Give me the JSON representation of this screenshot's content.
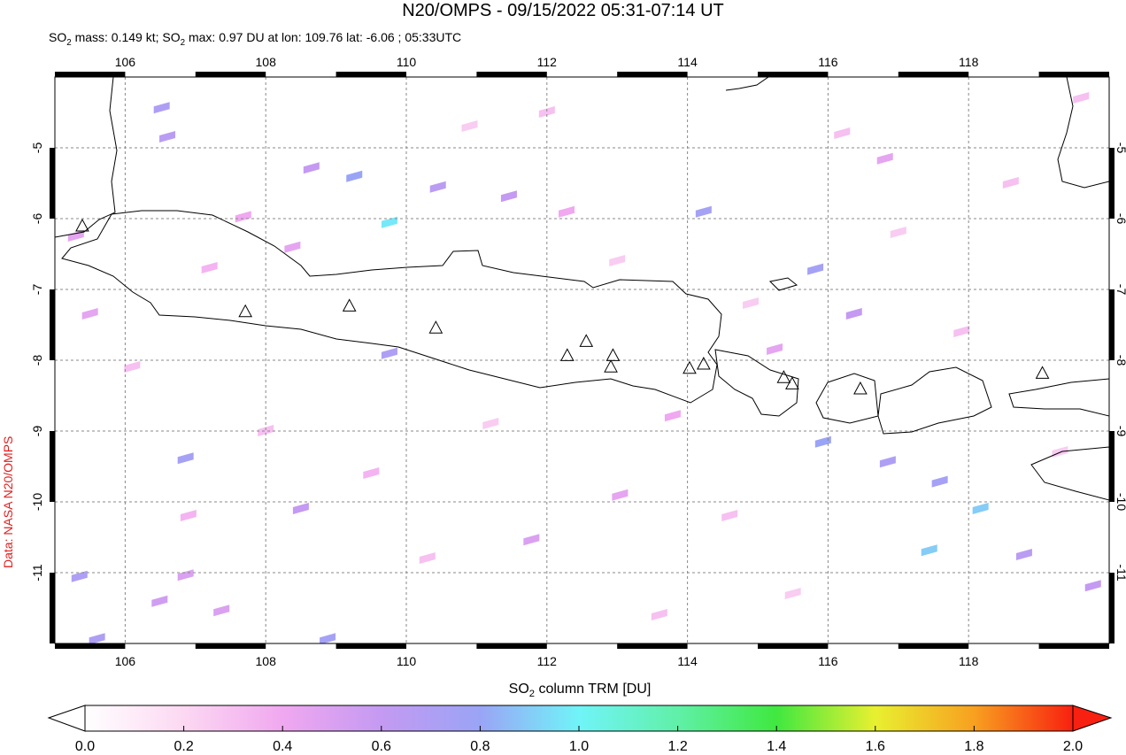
{
  "title": "N20/OMPS - 09/15/2022 05:31-07:14 UT",
  "subtitle": [
    "SO",
    "2",
    " mass: 0.149 kt; SO",
    "2",
    " max: 0.97 DU at lon: 109.76 lat: -6.06 ; 05:33UTC"
  ],
  "credit": "Data: NASA N20/OMPS",
  "map": {
    "xlim": [
      105,
      120
    ],
    "ylim": [
      -12,
      -4
    ],
    "xticks": [
      106,
      108,
      110,
      112,
      114,
      116,
      118
    ],
    "yticks": [
      -5,
      -6,
      -7,
      -8,
      -9,
      -10,
      -11
    ],
    "volcanoes": [
      {
        "lon": 105.39,
        "lat": -6.1
      },
      {
        "lon": 107.71,
        "lat": -7.31
      },
      {
        "lon": 109.19,
        "lat": -7.23
      },
      {
        "lon": 110.42,
        "lat": -7.54
      },
      {
        "lon": 112.29,
        "lat": -7.93
      },
      {
        "lon": 112.56,
        "lat": -7.73
      },
      {
        "lon": 112.94,
        "lat": -7.93
      },
      {
        "lon": 112.91,
        "lat": -8.09
      },
      {
        "lon": 114.03,
        "lat": -8.11
      },
      {
        "lon": 114.23,
        "lat": -8.05
      },
      {
        "lon": 115.37,
        "lat": -8.24
      },
      {
        "lon": 115.49,
        "lat": -8.33
      },
      {
        "lon": 116.46,
        "lat": -8.4
      },
      {
        "lon": 119.05,
        "lat": -8.18
      }
    ],
    "pixels": [
      {
        "lon": 109.76,
        "lat": -6.06,
        "value": 0.97
      },
      {
        "lon": 109.26,
        "lat": -5.41,
        "value": 0.8
      },
      {
        "lon": 106.86,
        "lat": -9.39,
        "value": 0.75
      },
      {
        "lon": 106.52,
        "lat": -4.44,
        "value": 0.7
      },
      {
        "lon": 106.6,
        "lat": -4.85,
        "value": 0.65
      },
      {
        "lon": 108.65,
        "lat": -5.29,
        "value": 0.6
      },
      {
        "lon": 110.45,
        "lat": -5.56,
        "value": 0.65
      },
      {
        "lon": 111.46,
        "lat": -5.69,
        "value": 0.6
      },
      {
        "lon": 114.23,
        "lat": -5.91,
        "value": 0.75
      },
      {
        "lon": 109.76,
        "lat": -7.91,
        "value": 0.7
      },
      {
        "lon": 108.5,
        "lat": -10.1,
        "value": 0.6
      },
      {
        "lon": 106.49,
        "lat": -11.41,
        "value": 0.55
      },
      {
        "lon": 108.88,
        "lat": -11.94,
        "value": 0.75
      },
      {
        "lon": 105.6,
        "lat": -11.94,
        "value": 0.7
      },
      {
        "lon": 105.35,
        "lat": -11.06,
        "value": 0.7
      },
      {
        "lon": 115.93,
        "lat": -9.16,
        "value": 0.8
      },
      {
        "lon": 117.44,
        "lat": -10.69,
        "value": 0.9
      },
      {
        "lon": 118.17,
        "lat": -10.1,
        "value": 0.9
      },
      {
        "lon": 117.59,
        "lat": -9.72,
        "value": 0.75
      },
      {
        "lon": 116.85,
        "lat": -9.44,
        "value": 0.7
      },
      {
        "lon": 115.82,
        "lat": -6.72,
        "value": 0.75
      },
      {
        "lon": 116.37,
        "lat": -7.35,
        "value": 0.6
      },
      {
        "lon": 118.79,
        "lat": -10.75,
        "value": 0.65
      },
      {
        "lon": 119.77,
        "lat": -11.19,
        "value": 0.6
      },
      {
        "lon": 106.86,
        "lat": -11.04,
        "value": 0.5
      },
      {
        "lon": 107.37,
        "lat": -11.54,
        "value": 0.5
      },
      {
        "lon": 111.78,
        "lat": -10.54,
        "value": 0.5
      },
      {
        "lon": 113.04,
        "lat": -9.91,
        "value": 0.45
      },
      {
        "lon": 108.38,
        "lat": -6.41,
        "value": 0.45
      },
      {
        "lon": 107.68,
        "lat": -5.98,
        "value": 0.4
      },
      {
        "lon": 112.28,
        "lat": -5.91,
        "value": 0.4
      },
      {
        "lon": 116.81,
        "lat": -5.16,
        "value": 0.45
      },
      {
        "lon": 115.24,
        "lat": -7.85,
        "value": 0.45
      },
      {
        "lon": 113.79,
        "lat": -8.79,
        "value": 0.4
      },
      {
        "lon": 105.3,
        "lat": -6.25,
        "value": 0.45
      },
      {
        "lon": 105.5,
        "lat": -7.35,
        "value": 0.45
      },
      {
        "lon": 106.1,
        "lat": -8.1,
        "value": 0.3
      },
      {
        "lon": 107.2,
        "lat": -6.7,
        "value": 0.35
      },
      {
        "lon": 108.0,
        "lat": -9.0,
        "value": 0.3
      },
      {
        "lon": 109.5,
        "lat": -9.6,
        "value": 0.35
      },
      {
        "lon": 110.3,
        "lat": -10.8,
        "value": 0.3
      },
      {
        "lon": 111.2,
        "lat": -8.9,
        "value": 0.25
      },
      {
        "lon": 112.0,
        "lat": -4.5,
        "value": 0.3
      },
      {
        "lon": 113.0,
        "lat": -6.6,
        "value": 0.25
      },
      {
        "lon": 114.6,
        "lat": -10.2,
        "value": 0.3
      },
      {
        "lon": 115.5,
        "lat": -11.3,
        "value": 0.25
      },
      {
        "lon": 116.2,
        "lat": -4.8,
        "value": 0.3
      },
      {
        "lon": 117.0,
        "lat": -6.2,
        "value": 0.25
      },
      {
        "lon": 117.9,
        "lat": -7.6,
        "value": 0.3
      },
      {
        "lon": 118.6,
        "lat": -5.5,
        "value": 0.3
      },
      {
        "lon": 119.3,
        "lat": -9.3,
        "value": 0.25
      },
      {
        "lon": 119.6,
        "lat": -4.3,
        "value": 0.3
      },
      {
        "lon": 110.9,
        "lat": -4.7,
        "value": 0.25
      },
      {
        "lon": 106.9,
        "lat": -10.2,
        "value": 0.35
      },
      {
        "lon": 113.6,
        "lat": -11.6,
        "value": 0.3
      },
      {
        "lon": 114.9,
        "lat": -7.2,
        "value": 0.25
      }
    ]
  },
  "colorbar": {
    "label": [
      "SO",
      "2",
      " column TRM [DU]"
    ],
    "lim": [
      0,
      2
    ],
    "ticks": [
      {
        "value": 0,
        "label": "0.0"
      },
      0.2,
      0.4,
      0.6,
      0.8,
      {
        "value": 1,
        "label": "1.0"
      },
      1.2,
      1.4,
      1.6,
      1.8,
      {
        "value": 2,
        "label": "2.0"
      }
    ]
  }
}
